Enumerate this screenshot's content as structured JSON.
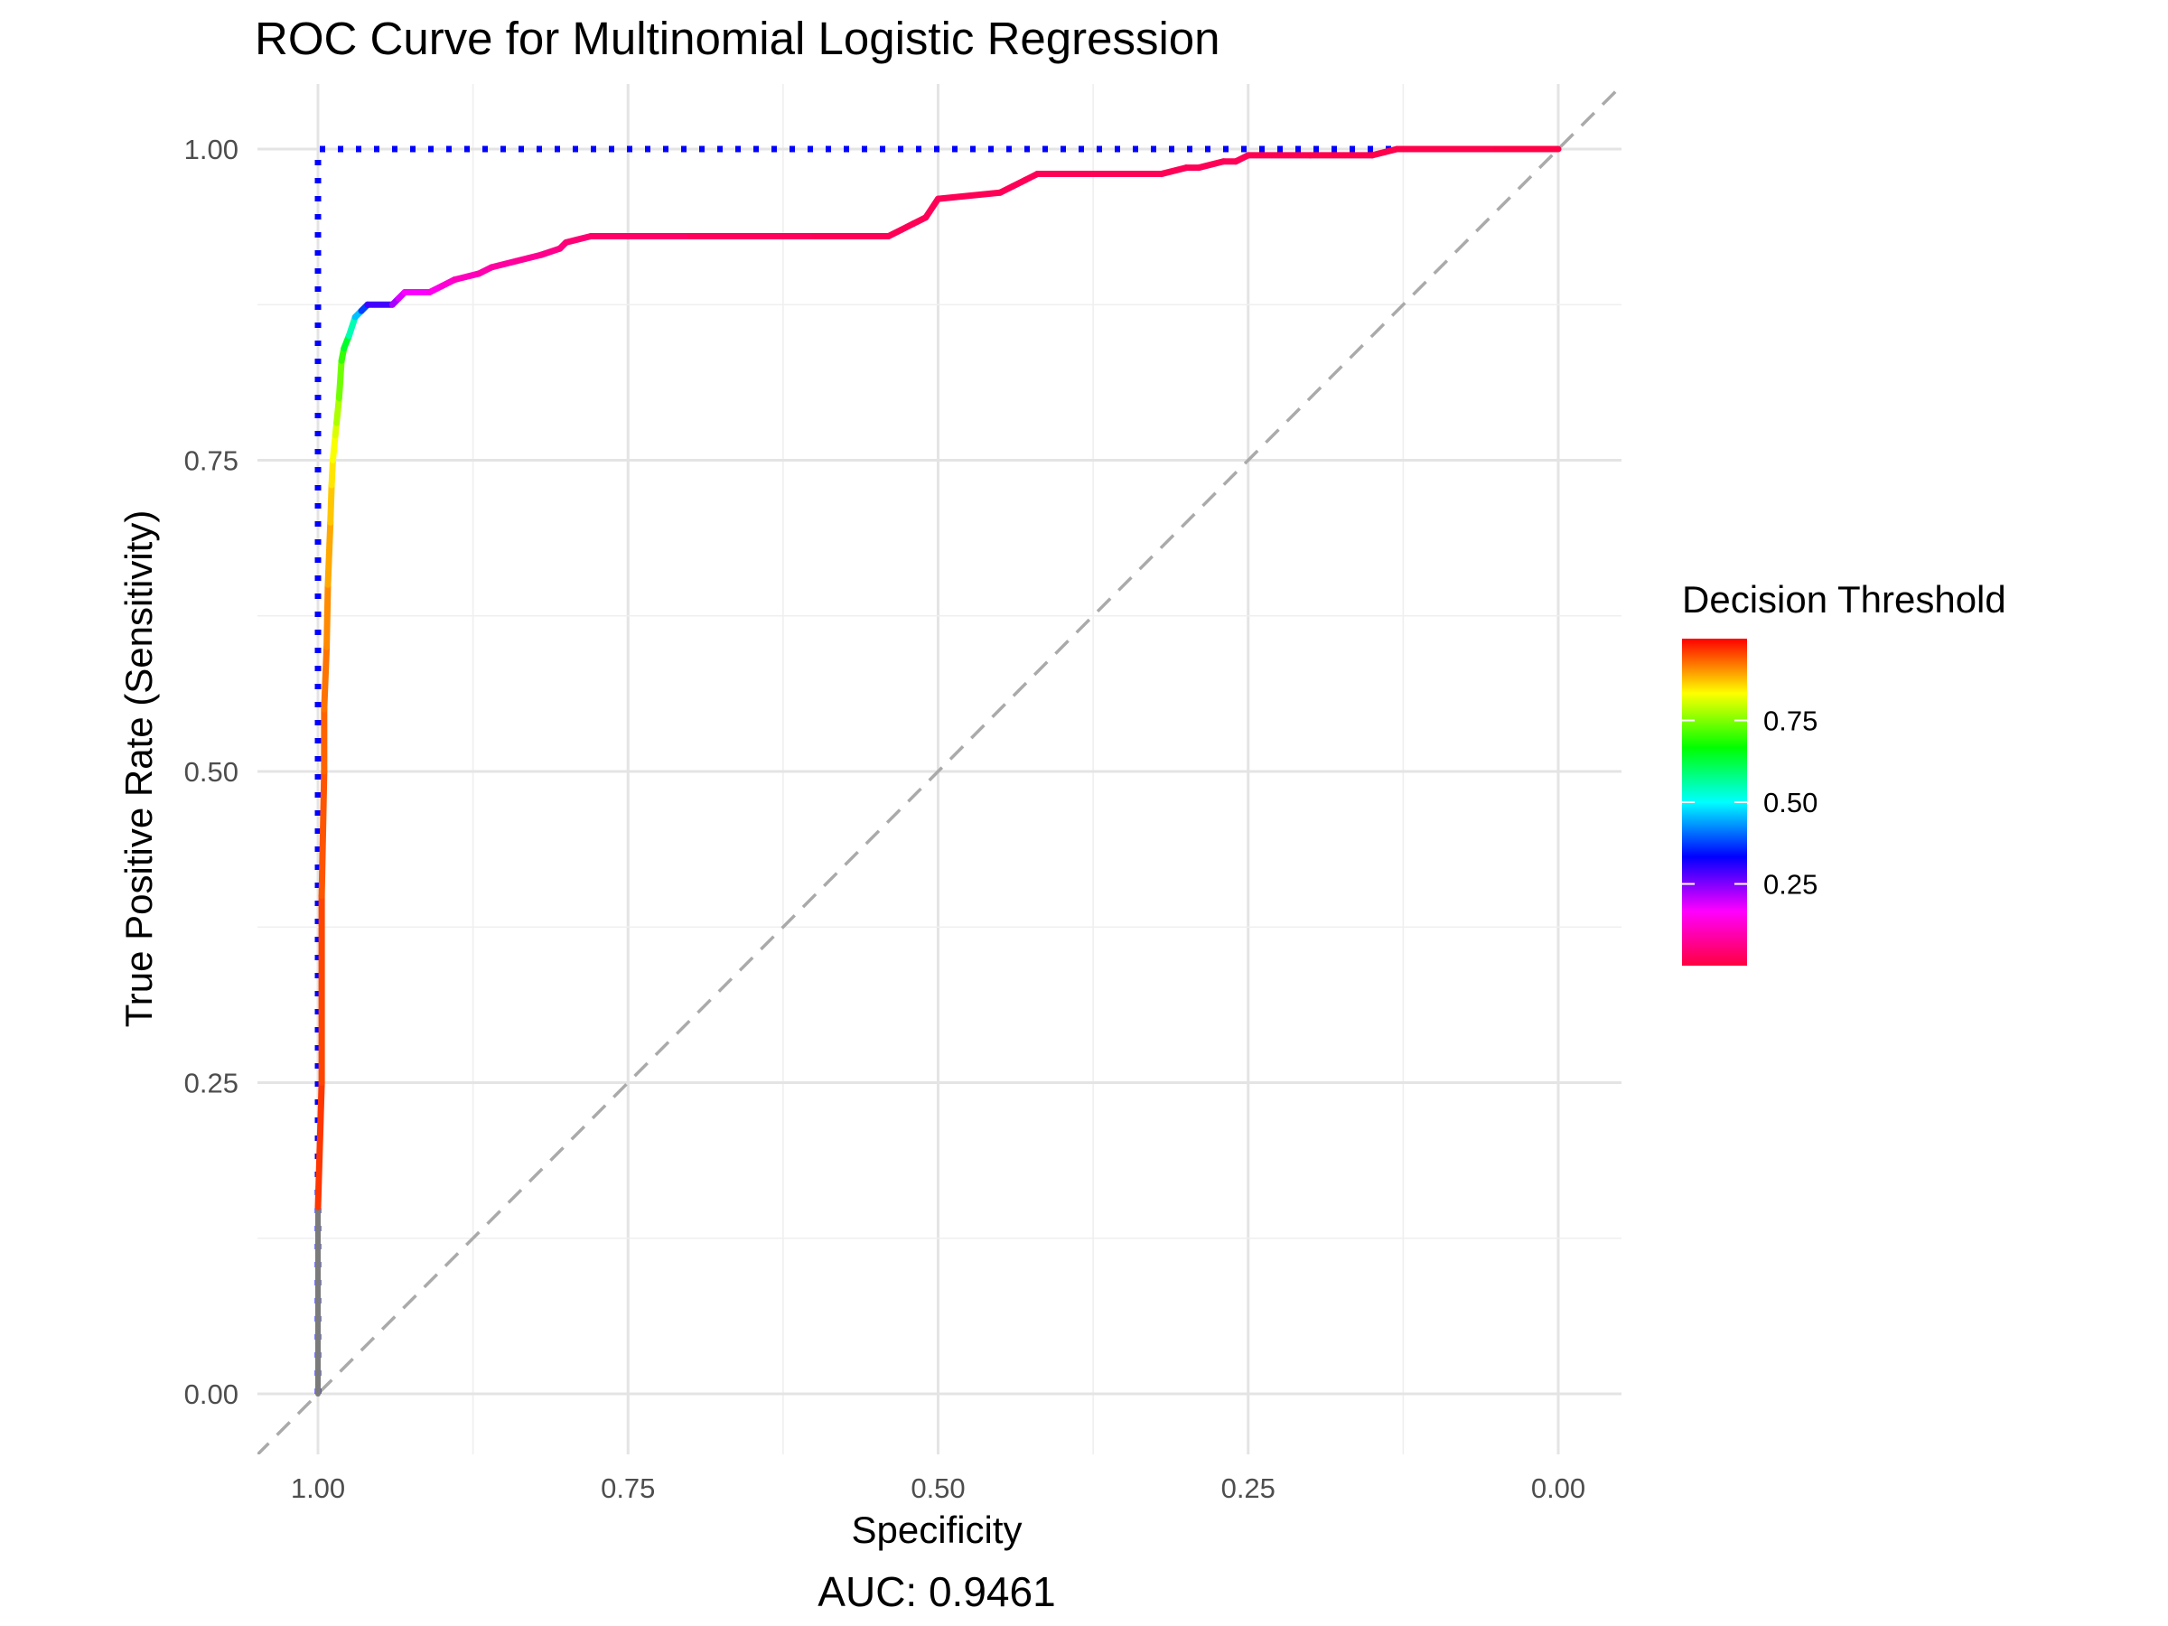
{
  "chart_data": {
    "type": "line",
    "title": "ROC Curve for Multinomial Logistic Regression",
    "xlabel": "Specificity",
    "ylabel": "True Positive Rate (Sensitivity)",
    "caption": "AUC: 0.9461",
    "x_reversed": true,
    "xlim": [
      1.0,
      0.0
    ],
    "ylim": [
      0.0,
      1.0
    ],
    "x_ticks": [
      "1.00",
      "0.75",
      "0.50",
      "0.25",
      "0.00"
    ],
    "y_ticks": [
      "0.00",
      "0.25",
      "0.50",
      "0.75",
      "1.00"
    ],
    "x_tick_values": [
      1.0,
      0.75,
      0.5,
      0.25,
      0.0
    ],
    "y_tick_values": [
      0.0,
      0.25,
      0.5,
      0.75,
      1.0
    ],
    "grid": true,
    "legend": {
      "title": "Decision Threshold",
      "placement": "right",
      "labels": [
        "0.75",
        "0.50",
        "0.25"
      ],
      "label_values": [
        0.75,
        0.5,
        0.25
      ],
      "range": [
        0.0,
        1.0
      ],
      "palette": [
        "#ff0040",
        "#ff00ff",
        "#0000ff",
        "#00ffff",
        "#00ff00",
        "#ffff00",
        "#ff0000"
      ]
    },
    "reference_lines": [
      {
        "kind": "diagonal",
        "color": "#aaaaaa",
        "dash": "dashed"
      },
      {
        "kind": "ideal",
        "color": "#0000ff",
        "dash": "dotted",
        "points": [
          [
            1.0,
            0.0
          ],
          [
            1.0,
            1.0
          ],
          [
            0.0,
            1.0
          ]
        ]
      }
    ],
    "series": [
      {
        "x": [
          1.0,
          1.0,
          1.0,
          1.0,
          0.997,
          0.997,
          0.995,
          0.995,
          0.993,
          0.992,
          0.99,
          0.989,
          0.988,
          0.986,
          0.985,
          0.983,
          0.981,
          0.979,
          0.975,
          0.97,
          0.965,
          0.96,
          0.94,
          0.935,
          0.93,
          0.91,
          0.9,
          0.89,
          0.87,
          0.86,
          0.84,
          0.82,
          0.805,
          0.8,
          0.78,
          0.7,
          0.6,
          0.54,
          0.53,
          0.52,
          0.51,
          0.5,
          0.45,
          0.44,
          0.43,
          0.42,
          0.38,
          0.32,
          0.3,
          0.29,
          0.27,
          0.26,
          0.25,
          0.2,
          0.15,
          0.13,
          0.1,
          0.05,
          0.0
        ],
        "y": [
          0.0,
          0.05,
          0.1,
          0.15,
          0.25,
          0.4,
          0.5,
          0.55,
          0.6,
          0.65,
          0.7,
          0.73,
          0.75,
          0.77,
          0.78,
          0.8,
          0.83,
          0.84,
          0.85,
          0.865,
          0.87,
          0.875,
          0.875,
          0.88,
          0.885,
          0.885,
          0.89,
          0.895,
          0.9,
          0.905,
          0.91,
          0.915,
          0.92,
          0.925,
          0.93,
          0.93,
          0.93,
          0.93,
          0.935,
          0.94,
          0.945,
          0.96,
          0.965,
          0.97,
          0.975,
          0.98,
          0.98,
          0.98,
          0.985,
          0.985,
          0.99,
          0.99,
          0.995,
          0.995,
          0.995,
          1.0,
          1.0,
          1.0,
          1.0
        ],
        "threshold": [
          1.0,
          0.99,
          0.98,
          0.97,
          0.96,
          0.95,
          0.94,
          0.93,
          0.92,
          0.9,
          0.88,
          0.86,
          0.84,
          0.82,
          0.8,
          0.76,
          0.72,
          0.68,
          0.6,
          0.5,
          0.42,
          0.33,
          0.25,
          0.2,
          0.18,
          0.16,
          0.14,
          0.12,
          0.1,
          0.09,
          0.08,
          0.07,
          0.06,
          0.05,
          0.04,
          0.03,
          0.02,
          0.02,
          0.02,
          0.02,
          0.02,
          0.02,
          0.02,
          0.02,
          0.02,
          0.02,
          0.02,
          0.02,
          0.02,
          0.02,
          0.02,
          0.02,
          0.02,
          0.01,
          0.01,
          0.01,
          0.01,
          0.01,
          0.0
        ]
      }
    ]
  }
}
